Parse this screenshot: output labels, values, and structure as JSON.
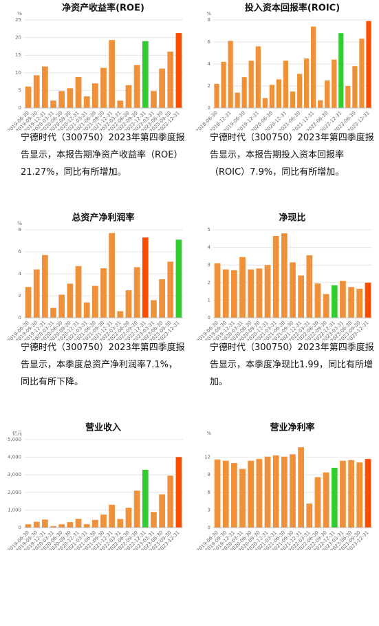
{
  "chart_data": [
    {
      "type": "bar",
      "title": "净资产收益率(ROE)",
      "unit": "%",
      "categories": [
        "2019-06-30",
        "2019-09-30",
        "2019-12-31",
        "2020-03-31",
        "2020-06-30",
        "2020-09-30",
        "2020-12-31",
        "2021-03-31",
        "2021-06-30",
        "2021-09-30",
        "2021-12-31",
        "2022-03-31",
        "2022-06-30",
        "2022-09-30",
        "2022-12-31",
        "2023-03-31",
        "2023-06-30",
        "2023-09-30",
        "2023-12-31"
      ],
      "values": [
        6.1,
        9.3,
        11.8,
        2.1,
        4.8,
        5.6,
        8.8,
        3.3,
        7.0,
        11.4,
        19.3,
        2.1,
        6.5,
        12.2,
        19.0,
        4.8,
        11.2,
        16.0,
        21.27
      ],
      "colors": [
        "#ef913b",
        "#ef913b",
        "#ef913b",
        "#ef913b",
        "#ef913b",
        "#ef913b",
        "#ef913b",
        "#ef913b",
        "#ef913b",
        "#ef913b",
        "#ef913b",
        "#ef913b",
        "#ef913b",
        "#ef913b",
        "#33cc33",
        "#ef913b",
        "#ef913b",
        "#ef913b",
        "#ff4d00"
      ],
      "ylim": [
        0,
        25
      ],
      "yticks": [
        0,
        5,
        10,
        15,
        20,
        25
      ],
      "grid": true,
      "description": "宁德时代（300750）2023年第四季度报告显示，本报告期净资产收益率（ROE）21.27%，同比有所增加。"
    },
    {
      "type": "bar",
      "title": "投入资本回报率(ROIC)",
      "unit": "%",
      "categories": [
        "2018-06-30",
        null,
        "2018-12-31",
        null,
        "2019-06-30",
        null,
        "2019-12-31",
        null,
        "2020-06-30",
        null,
        "2020-12-31",
        null,
        "2021-06-30",
        null,
        "2021-12-31",
        null,
        "2022-06-30",
        null,
        "2022-12-31",
        null,
        "2023-06-30",
        null,
        "2023-12-31"
      ],
      "values": [
        2.2,
        4.2,
        6.1,
        1.4,
        2.8,
        4.3,
        5.6,
        0.9,
        2.1,
        2.6,
        4.3,
        1.5,
        3.1,
        4.5,
        7.4,
        0.7,
        2.5,
        4.4,
        6.8,
        2.0,
        3.8,
        6.3,
        7.9
      ],
      "colors": [
        "#ef913b",
        "#ef913b",
        "#ef913b",
        "#ef913b",
        "#ef913b",
        "#ef913b",
        "#ef913b",
        "#ef913b",
        "#ef913b",
        "#ef913b",
        "#ef913b",
        "#ef913b",
        "#ef913b",
        "#ef913b",
        "#ef913b",
        "#ef913b",
        "#ef913b",
        "#ef913b",
        "#33cc33",
        "#ef913b",
        "#ef913b",
        "#ef913b",
        "#ff4d00"
      ],
      "ylim": [
        0,
        8
      ],
      "yticks": [
        0,
        2,
        4,
        6,
        8
      ],
      "grid": true,
      "description": "宁德时代（300750）2023年第四季度报告显示，本报告期投入资本回报率（ROIC）7.9%，同比有所增加。"
    },
    {
      "type": "bar",
      "title": "总资产净利润率",
      "unit": "%",
      "categories": [
        "2019-06-30",
        "2019-09-30",
        "2019-12-31",
        "2020-03-31",
        "2020-06-30",
        "2020-09-30",
        "2020-12-31",
        "2021-03-31",
        "2021-06-30",
        "2021-09-30",
        "2021-12-31",
        "2022-03-31",
        "2022-06-30",
        "2022-09-30",
        "2022-12-31",
        "2023-03-31",
        "2023-06-30",
        "2023-09-30",
        "2023-12-31"
      ],
      "values": [
        2.8,
        4.4,
        5.7,
        0.9,
        2.1,
        3.1,
        4.7,
        1.4,
        2.9,
        4.5,
        7.7,
        0.6,
        2.5,
        4.6,
        7.3,
        1.6,
        3.5,
        5.1,
        7.1
      ],
      "colors": [
        "#ef913b",
        "#ef913b",
        "#ef913b",
        "#ef913b",
        "#ef913b",
        "#ef913b",
        "#ef913b",
        "#ef913b",
        "#ef913b",
        "#ef913b",
        "#ef913b",
        "#ef913b",
        "#ef913b",
        "#ef913b",
        "#ff4d00",
        "#ef913b",
        "#ef913b",
        "#ef913b",
        "#33cc33"
      ],
      "ylim": [
        0,
        8
      ],
      "yticks": [
        0,
        2,
        4,
        6,
        8
      ],
      "grid": true,
      "description": "宁德时代（300750）2023年第四季度报告显示，本季度总资产净利润率7.1%，同比有所下降。"
    },
    {
      "type": "bar",
      "title": "净现比",
      "categories": [
        "2019-06-30",
        "2019-09-30",
        "2019-12-31",
        "2020-03-31",
        "2020-06-30",
        "2020-09-30",
        "2020-12-31",
        "2021-03-31",
        "2021-06-30",
        "2021-09-30",
        "2021-12-31",
        "2022-03-31",
        "2022-06-30",
        "2022-09-30",
        "2022-12-31",
        "2023-03-31",
        "2023-06-30",
        "2023-09-30",
        "2023-12-31"
      ],
      "values": [
        3.1,
        2.75,
        2.7,
        3.45,
        2.75,
        2.8,
        3.0,
        4.65,
        4.8,
        3.15,
        2.4,
        3.55,
        1.95,
        1.35,
        1.85,
        2.1,
        1.75,
        1.65,
        1.99
      ],
      "colors": [
        "#ef913b",
        "#ef913b",
        "#ef913b",
        "#ef913b",
        "#ef913b",
        "#ef913b",
        "#ef913b",
        "#ef913b",
        "#ef913b",
        "#ef913b",
        "#ef913b",
        "#ef913b",
        "#ef913b",
        "#ef913b",
        "#33cc33",
        "#ef913b",
        "#ef913b",
        "#ef913b",
        "#ff4d00"
      ],
      "ylim": [
        0,
        5
      ],
      "yticks": [
        0,
        1,
        2,
        3,
        4,
        5
      ],
      "grid": true,
      "description": "宁德时代（300750）2023年第四季度报告显示，本季度净现比1.99，同比有所增加。"
    },
    {
      "type": "bar",
      "title": "营业收入",
      "unit": "亿元",
      "categories": [
        "2019-06-30",
        "2019-09-30",
        "2019-12-31",
        "2020-03-31",
        "2020-06-30",
        "2020-09-30",
        "2020-12-31",
        "2021-03-31",
        "2021-06-30",
        "2021-09-30",
        "2021-12-31",
        "2022-03-31",
        "2022-06-30",
        "2022-09-30",
        "2022-12-31",
        "2023-03-31",
        "2023-06-30",
        "2023-09-30",
        "2023-12-31"
      ],
      "values": [
        190,
        330,
        460,
        90,
        190,
        310,
        500,
        200,
        440,
        740,
        1300,
        490,
        1130,
        2100,
        3285,
        890,
        1890,
        2950,
        4009
      ],
      "colors": [
        "#ef913b",
        "#ef913b",
        "#ef913b",
        "#ef913b",
        "#ef913b",
        "#ef913b",
        "#ef913b",
        "#ef913b",
        "#ef913b",
        "#ef913b",
        "#ef913b",
        "#ef913b",
        "#ef913b",
        "#ef913b",
        "#33cc33",
        "#ef913b",
        "#ef913b",
        "#ef913b",
        "#ff4d00"
      ],
      "ylim": [
        0,
        5000
      ],
      "yticks": [
        0,
        {
          "value": 1000,
          "label": "1,000"
        },
        {
          "value": 2000,
          "label": "2,000"
        },
        {
          "value": 3000,
          "label": "3,000"
        },
        {
          "value": 4000,
          "label": "4,000"
        },
        {
          "value": 5000,
          "label": "5,000"
        }
      ],
      "grid": true
    },
    {
      "type": "bar",
      "title": "营业净利率",
      "unit": "%",
      "categories": [
        "2019-06-30",
        "2019-09-30",
        "2019-12-31",
        "2020-03-31",
        "2020-06-30",
        "2020-09-30",
        "2020-12-31",
        "2021-03-31",
        "2021-06-30",
        "2021-09-30",
        "2021-12-31",
        "2022-03-31",
        "2022-06-30",
        "2022-09-30",
        "2022-12-31",
        "2023-03-31",
        "2023-06-30",
        "2023-09-30",
        "2023-12-31"
      ],
      "values": [
        11.6,
        11.4,
        11.0,
        10.0,
        11.4,
        11.7,
        12.1,
        12.3,
        12.1,
        12.5,
        13.7,
        4.1,
        8.6,
        9.4,
        10.2,
        11.4,
        11.5,
        11.1,
        11.7
      ],
      "colors": [
        "#ef913b",
        "#ef913b",
        "#ef913b",
        "#ef913b",
        "#ef913b",
        "#ef913b",
        "#ef913b",
        "#ef913b",
        "#ef913b",
        "#ef913b",
        "#ef913b",
        "#ef913b",
        "#ef913b",
        "#ef913b",
        "#33cc33",
        "#ef913b",
        "#ef913b",
        "#ef913b",
        "#ff4d00"
      ],
      "ylim": [
        0,
        15
      ],
      "yticks": [
        0,
        3,
        6,
        9,
        12
      ],
      "grid": true
    }
  ]
}
